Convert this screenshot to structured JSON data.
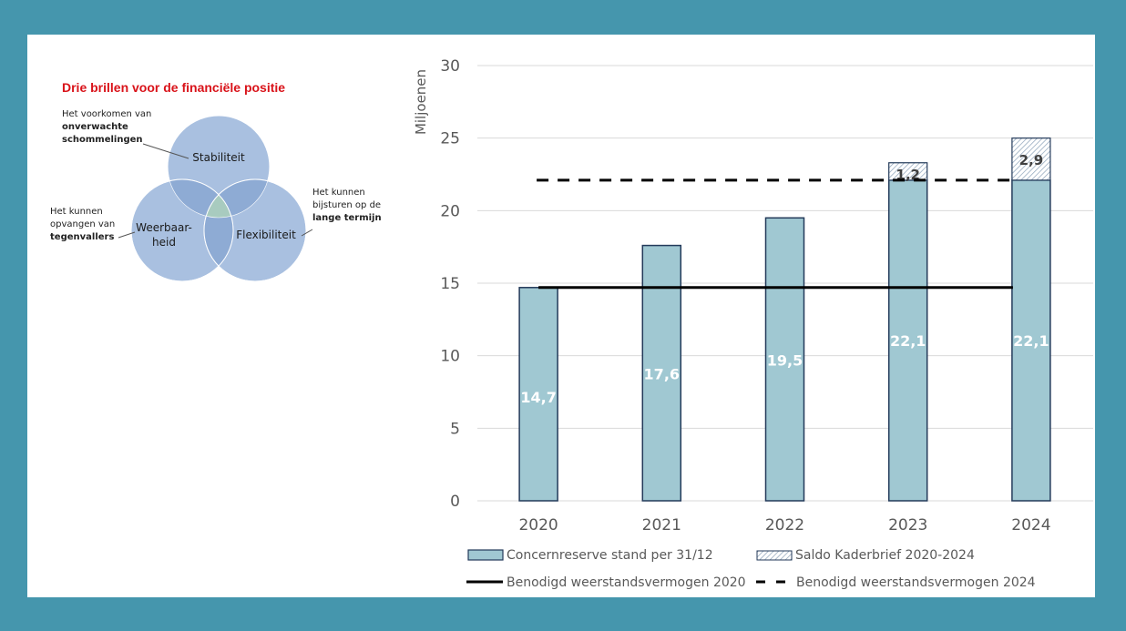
{
  "venn": {
    "title": "Drie brillen voor de financiële positie",
    "circles": [
      {
        "label": "Stabiliteit"
      },
      {
        "label_line1": "Weerbaar-",
        "label_line2": "heid"
      },
      {
        "label": "Flexibiliteit"
      }
    ],
    "notes": {
      "stabiliteit": {
        "line1": "Het voorkomen van",
        "bold1": "onverwachte",
        "bold2": "schommelingen"
      },
      "weerbaarheid": {
        "line1": "Het kunnen",
        "line2": "opvangen van",
        "bold1": "tegenvallers"
      },
      "flexibiliteit": {
        "line1": "Het kunnen",
        "line2": "bijsturen op de",
        "bold1": "lange termijn"
      }
    },
    "colors": {
      "circle": "#a9c0e0",
      "overlap": "#8aa8d2"
    }
  },
  "chart_data": {
    "type": "bar",
    "title": "",
    "xlabel": "",
    "ylabel": "Miljoenen",
    "ylim": [
      0,
      30
    ],
    "yticks": [
      0,
      5,
      10,
      15,
      20,
      25,
      30
    ],
    "ytick_labels": [
      "0",
      "5",
      "10",
      "15",
      "20",
      "25",
      "30"
    ],
    "grid": true,
    "categories": [
      "2020",
      "2021",
      "2022",
      "2023",
      "2024"
    ],
    "series": [
      {
        "name": "Concernreserve stand per 31/12",
        "kind": "bar",
        "values": [
          14.7,
          17.6,
          19.5,
          22.1,
          22.1
        ],
        "labels": [
          "14,7",
          "17,6",
          "19,5",
          "22,1",
          "22,1"
        ],
        "color": "#a0c8d2"
      },
      {
        "name": "Saldo Kaderbrief 2020-2024",
        "kind": "bar-stacked-hatched",
        "values": [
          0,
          0,
          0,
          1.2,
          2.9
        ],
        "labels": [
          "",
          "",
          "",
          "1,2",
          "2,9"
        ],
        "color": "#ffffff"
      },
      {
        "name": "Benodigd weerstandsvermogen 2020",
        "kind": "line-solid",
        "value": 14.7,
        "color": "#000000"
      },
      {
        "name": "Benodigd weerstandsvermogen 2024",
        "kind": "line-dashed",
        "value": 22.1,
        "color": "#000000"
      }
    ],
    "legend": {
      "placement": "bottom",
      "items": [
        "Concernreserve stand per 31/12",
        "Saldo Kaderbrief 2020-2024",
        "Benodigd weerstandsvermogen 2020",
        "Benodigd weerstandsvermogen 2024"
      ]
    }
  },
  "colors": {
    "frame": "#4596ad",
    "bar_stroke": "#233a5a",
    "axis_text": "#595959",
    "grid": "#d9d9d9"
  }
}
